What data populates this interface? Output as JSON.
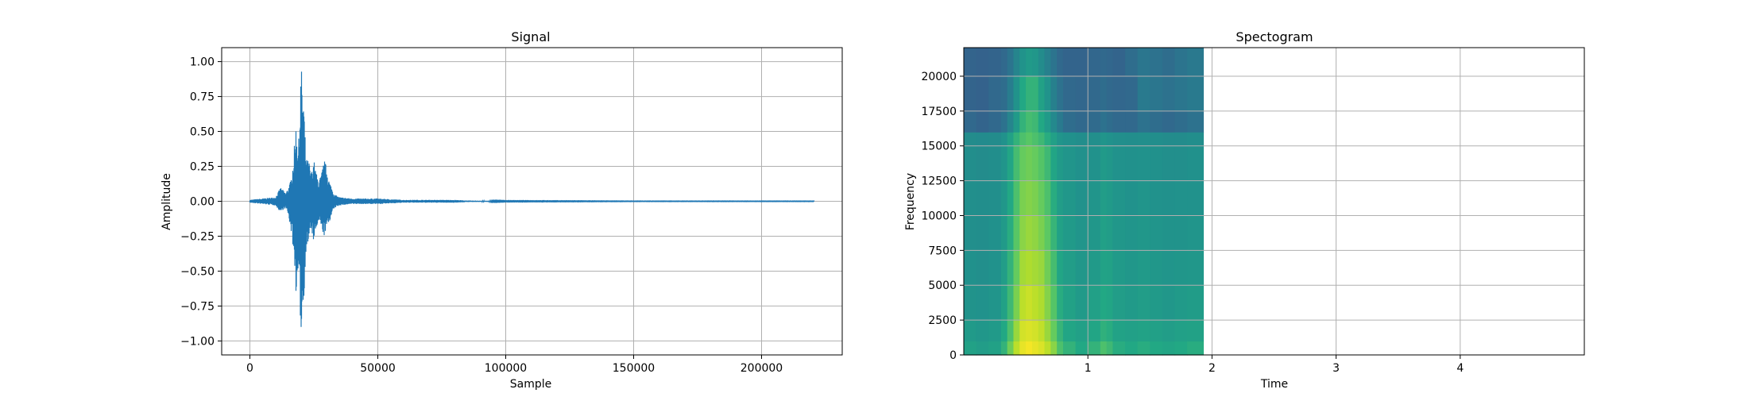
{
  "chart_data": [
    {
      "type": "line",
      "title": "Signal",
      "xlabel": "Sample",
      "ylabel": "Amplitude",
      "xlim": [
        -11025,
        231525
      ],
      "ylim": [
        -1.1,
        1.1
      ],
      "xticks": [
        0,
        50000,
        100000,
        150000,
        200000
      ],
      "xtick_labels": [
        "0",
        "50000",
        "100000",
        "150000",
        "200000"
      ],
      "yticks": [
        1.0,
        0.75,
        0.5,
        0.25,
        0.0,
        -0.25,
        -0.5,
        -0.75,
        -1.0
      ],
      "ytick_labels": [
        "1.00",
        "0.75",
        "0.50",
        "0.25",
        "0.00",
        "−0.25",
        "−0.50",
        "−0.75",
        "−1.00"
      ],
      "grid": true,
      "color": "#1f77b4",
      "series": [
        {
          "x": [
            0,
            5000,
            10000,
            12000,
            13000,
            14000,
            15000,
            16000,
            17000,
            18000,
            19000,
            19500,
            20000,
            20500,
            21000,
            21500,
            22000,
            23000,
            24000,
            25000,
            26000,
            27000,
            28000,
            29000,
            30000,
            31000,
            32000,
            33000,
            35000,
            40000,
            45000,
            50000,
            60000,
            70000,
            80000,
            85000,
            100000,
            150000,
            200000,
            220500
          ],
          "envelope_max": [
            0.01,
            0.02,
            0.03,
            0.1,
            0.08,
            0.06,
            0.1,
            0.15,
            0.3,
            0.55,
            0.4,
            0.65,
            1.0,
            0.85,
            0.75,
            0.5,
            0.3,
            0.3,
            0.2,
            0.3,
            0.2,
            0.15,
            0.2,
            0.3,
            0.25,
            0.15,
            0.1,
            0.05,
            0.03,
            0.02,
            0.02,
            0.02,
            0.01,
            0.01,
            0.01,
            0.005,
            0.002,
            0.001,
            0.001,
            0.001
          ],
          "envelope_min": [
            -0.01,
            -0.02,
            -0.03,
            -0.08,
            -0.06,
            -0.05,
            -0.1,
            -0.2,
            -0.35,
            -0.65,
            -0.55,
            -0.75,
            -0.97,
            -0.85,
            -0.78,
            -0.5,
            -0.35,
            -0.3,
            -0.2,
            -0.3,
            -0.2,
            -0.15,
            -0.2,
            -0.25,
            -0.2,
            -0.15,
            -0.1,
            -0.05,
            -0.03,
            -0.02,
            -0.02,
            -0.02,
            -0.01,
            -0.01,
            -0.01,
            -0.005,
            -0.002,
            -0.001,
            -0.001,
            -0.001
          ]
        }
      ]
    },
    {
      "type": "heatmap",
      "title": "Spectogram",
      "xlabel": "Time",
      "ylabel": "Frequency",
      "xlim": [
        0,
        5.0
      ],
      "ylim": [
        0,
        22050
      ],
      "xticks": [
        1,
        2,
        3,
        4
      ],
      "xtick_labels": [
        "1",
        "2",
        "3",
        "4"
      ],
      "yticks": [
        0,
        2500,
        5000,
        7500,
        10000,
        12500,
        15000,
        17500,
        20000
      ],
      "ytick_labels": [
        "0",
        "2500",
        "5000",
        "7500",
        "10000",
        "12500",
        "15000",
        "17500",
        "20000"
      ],
      "grid": true,
      "data_extent_time": [
        0,
        1.93
      ],
      "colormap": "viridis",
      "colormap_stops": [
        "#3b528b",
        "#2a788e",
        "#21918c",
        "#22a884",
        "#5ec962",
        "#b5de2b",
        "#fde725"
      ],
      "time_bins": [
        0.0,
        0.1,
        0.2,
        0.3,
        0.35,
        0.4,
        0.45,
        0.5,
        0.55,
        0.6,
        0.65,
        0.7,
        0.75,
        0.8,
        0.9,
        1.0,
        1.1,
        1.15,
        1.2,
        1.3,
        1.4,
        1.5,
        1.6,
        1.7,
        1.8,
        1.93
      ],
      "freq_bins": [
        0,
        1000,
        2500,
        5000,
        7500,
        10000,
        12500,
        15000,
        16000,
        17500,
        20000,
        22050
      ],
      "intensity": [
        [
          0.45,
          0.4,
          0.35,
          0.33,
          0.32,
          0.32,
          0.31,
          0.3,
          0.1,
          0.08,
          0.08
        ],
        [
          0.42,
          0.38,
          0.34,
          0.32,
          0.31,
          0.31,
          0.3,
          0.29,
          0.08,
          0.07,
          0.07
        ],
        [
          0.45,
          0.4,
          0.36,
          0.34,
          0.33,
          0.32,
          0.31,
          0.3,
          0.1,
          0.1,
          0.08
        ],
        [
          0.55,
          0.5,
          0.45,
          0.42,
          0.4,
          0.38,
          0.36,
          0.34,
          0.14,
          0.12,
          0.1
        ],
        [
          0.7,
          0.62,
          0.58,
          0.55,
          0.52,
          0.5,
          0.48,
          0.45,
          0.25,
          0.2,
          0.15
        ],
        [
          0.85,
          0.78,
          0.72,
          0.68,
          0.65,
          0.62,
          0.6,
          0.55,
          0.4,
          0.35,
          0.25
        ],
        [
          0.95,
          0.9,
          0.85,
          0.8,
          0.75,
          0.72,
          0.68,
          0.62,
          0.55,
          0.5,
          0.35
        ],
        [
          0.98,
          0.92,
          0.88,
          0.82,
          0.78,
          0.74,
          0.7,
          0.65,
          0.6,
          0.55,
          0.4
        ],
        [
          0.95,
          0.9,
          0.85,
          0.8,
          0.76,
          0.72,
          0.68,
          0.62,
          0.58,
          0.55,
          0.38
        ],
        [
          0.92,
          0.86,
          0.82,
          0.78,
          0.72,
          0.68,
          0.64,
          0.58,
          0.5,
          0.45,
          0.3
        ],
        [
          0.85,
          0.78,
          0.74,
          0.7,
          0.66,
          0.62,
          0.58,
          0.52,
          0.4,
          0.35,
          0.22
        ],
        [
          0.75,
          0.68,
          0.64,
          0.6,
          0.56,
          0.52,
          0.48,
          0.44,
          0.28,
          0.22,
          0.15
        ],
        [
          0.62,
          0.56,
          0.52,
          0.48,
          0.45,
          0.42,
          0.4,
          0.36,
          0.18,
          0.14,
          0.1
        ],
        [
          0.55,
          0.48,
          0.45,
          0.42,
          0.4,
          0.38,
          0.36,
          0.33,
          0.12,
          0.1,
          0.08
        ],
        [
          0.5,
          0.44,
          0.4,
          0.38,
          0.36,
          0.34,
          0.33,
          0.31,
          0.1,
          0.09,
          0.08
        ],
        [
          0.55,
          0.48,
          0.44,
          0.4,
          0.38,
          0.36,
          0.34,
          0.32,
          0.11,
          0.1,
          0.09
        ],
        [
          0.62,
          0.54,
          0.5,
          0.46,
          0.44,
          0.42,
          0.4,
          0.36,
          0.14,
          0.12,
          0.1
        ],
        [
          0.58,
          0.52,
          0.48,
          0.45,
          0.42,
          0.4,
          0.38,
          0.34,
          0.12,
          0.1,
          0.09
        ],
        [
          0.52,
          0.46,
          0.42,
          0.4,
          0.38,
          0.36,
          0.34,
          0.32,
          0.1,
          0.09,
          0.08
        ],
        [
          0.5,
          0.44,
          0.4,
          0.38,
          0.36,
          0.34,
          0.33,
          0.31,
          0.1,
          0.1,
          0.12
        ],
        [
          0.52,
          0.46,
          0.42,
          0.4,
          0.38,
          0.36,
          0.34,
          0.32,
          0.14,
          0.18,
          0.16
        ],
        [
          0.5,
          0.44,
          0.4,
          0.38,
          0.36,
          0.34,
          0.33,
          0.31,
          0.12,
          0.16,
          0.14
        ],
        [
          0.48,
          0.42,
          0.38,
          0.36,
          0.35,
          0.33,
          0.32,
          0.3,
          0.1,
          0.14,
          0.12
        ],
        [
          0.5,
          0.44,
          0.4,
          0.37,
          0.35,
          0.34,
          0.32,
          0.3,
          0.12,
          0.16,
          0.15
        ],
        [
          0.52,
          0.45,
          0.41,
          0.38,
          0.36,
          0.34,
          0.33,
          0.31,
          0.14,
          0.18,
          0.17
        ]
      ]
    }
  ]
}
